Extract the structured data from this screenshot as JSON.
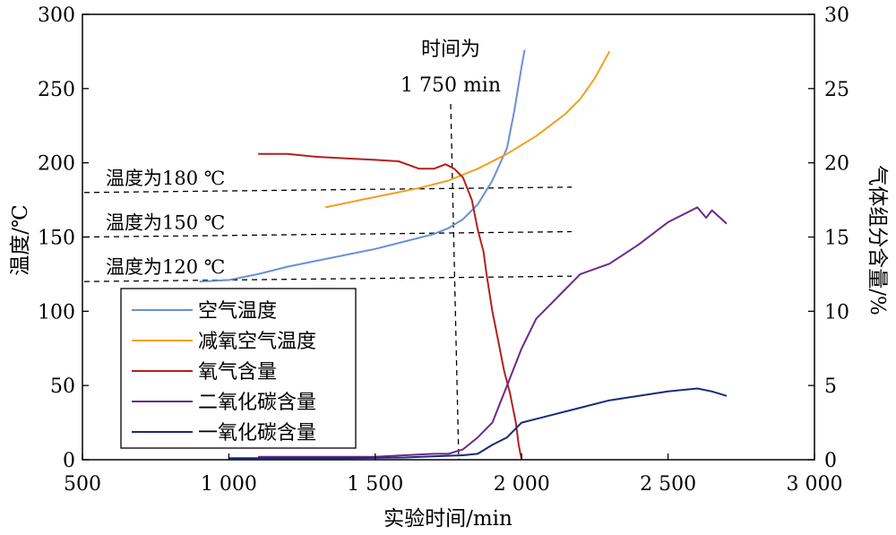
{
  "chart_data": {
    "type": "line",
    "xlabel": "实验时间/min",
    "ylabel_left": "温度/℃",
    "ylabel_right": "气体组分含量/%",
    "xlim": [
      500,
      3000
    ],
    "ylim_left": [
      0,
      300
    ],
    "ylim_right": [
      0,
      30
    ],
    "x_ticks": [
      500,
      1000,
      1500,
      2000,
      2500,
      3000
    ],
    "x_tick_labels": [
      "500",
      "1 000",
      "1 500",
      "2 000",
      "2 500",
      "3 000"
    ],
    "y_left_ticks": [
      0,
      50,
      100,
      150,
      200,
      250,
      300
    ],
    "y_left_tick_labels": [
      "0",
      "50",
      "100",
      "150",
      "200",
      "250",
      "300"
    ],
    "y_right_ticks": [
      0,
      5,
      10,
      15,
      20,
      25,
      30
    ],
    "y_right_tick_labels": [
      "0",
      "5",
      "10",
      "15",
      "20",
      "25",
      "30"
    ],
    "legend_position": "lower-left",
    "series": [
      {
        "name": "空气温度",
        "axis": "left",
        "color": "#6b8fd6",
        "points": [
          [
            900,
            120
          ],
          [
            1000,
            121
          ],
          [
            1100,
            125
          ],
          [
            1200,
            130
          ],
          [
            1300,
            134
          ],
          [
            1400,
            138
          ],
          [
            1500,
            142
          ],
          [
            1600,
            147
          ],
          [
            1700,
            152
          ],
          [
            1750,
            156
          ],
          [
            1800,
            162
          ],
          [
            1850,
            172
          ],
          [
            1900,
            188
          ],
          [
            1950,
            210
          ],
          [
            1975,
            235
          ],
          [
            2000,
            265
          ],
          [
            2010,
            276
          ]
        ]
      },
      {
        "name": "减氧空气温度",
        "axis": "left",
        "color": "#f0a020",
        "points": [
          [
            1330,
            170
          ],
          [
            1450,
            175
          ],
          [
            1550,
            179
          ],
          [
            1650,
            183
          ],
          [
            1750,
            188
          ],
          [
            1850,
            196
          ],
          [
            1950,
            206
          ],
          [
            2050,
            218
          ],
          [
            2150,
            233
          ],
          [
            2200,
            243
          ],
          [
            2250,
            257
          ],
          [
            2300,
            275
          ]
        ]
      },
      {
        "name": "氧气含量",
        "axis": "right",
        "color": "#b22020",
        "points": [
          [
            1100,
            20.6
          ],
          [
            1200,
            20.6
          ],
          [
            1300,
            20.4
          ],
          [
            1400,
            20.3
          ],
          [
            1500,
            20.2
          ],
          [
            1580,
            20.1
          ],
          [
            1650,
            19.6
          ],
          [
            1700,
            19.6
          ],
          [
            1740,
            19.9
          ],
          [
            1770,
            19.6
          ],
          [
            1800,
            19.0
          ],
          [
            1830,
            17.5
          ],
          [
            1850,
            15.5
          ],
          [
            1870,
            14.0
          ],
          [
            1880,
            12.5
          ],
          [
            1900,
            10.0
          ],
          [
            1920,
            8.0
          ],
          [
            1940,
            6.0
          ],
          [
            1960,
            4.5
          ],
          [
            1980,
            2.5
          ],
          [
            1990,
            1.0
          ],
          [
            2000,
            0.0
          ]
        ]
      },
      {
        "name": "二氧化碳含量",
        "axis": "right",
        "color": "#6a2a8a",
        "points": [
          [
            1100,
            0.2
          ],
          [
            1300,
            0.2
          ],
          [
            1500,
            0.2
          ],
          [
            1600,
            0.3
          ],
          [
            1700,
            0.4
          ],
          [
            1750,
            0.4
          ],
          [
            1800,
            0.7
          ],
          [
            1850,
            1.5
          ],
          [
            1900,
            2.5
          ],
          [
            1950,
            5.0
          ],
          [
            2000,
            7.5
          ],
          [
            2050,
            9.5
          ],
          [
            2100,
            10.5
          ],
          [
            2150,
            11.5
          ],
          [
            2200,
            12.5
          ],
          [
            2300,
            13.2
          ],
          [
            2400,
            14.5
          ],
          [
            2500,
            16.0
          ],
          [
            2600,
            17.0
          ],
          [
            2630,
            16.3
          ],
          [
            2650,
            16.8
          ],
          [
            2700,
            15.9
          ]
        ]
      },
      {
        "name": "一氧化碳含量",
        "axis": "right",
        "color": "#1a2a7a",
        "points": [
          [
            1000,
            0.1
          ],
          [
            1200,
            0.1
          ],
          [
            1400,
            0.1
          ],
          [
            1600,
            0.15
          ],
          [
            1800,
            0.3
          ],
          [
            1850,
            0.4
          ],
          [
            1900,
            1.0
          ],
          [
            1950,
            1.5
          ],
          [
            2000,
            2.5
          ],
          [
            2100,
            3.0
          ],
          [
            2200,
            3.5
          ],
          [
            2300,
            4.0
          ],
          [
            2400,
            4.3
          ],
          [
            2500,
            4.6
          ],
          [
            2600,
            4.8
          ],
          [
            2650,
            4.6
          ],
          [
            2700,
            4.3
          ]
        ]
      }
    ],
    "reference_lines": [
      {
        "label": "温度为180 ℃",
        "axis": "left",
        "value": 180
      },
      {
        "label": "温度为150 ℃",
        "axis": "left",
        "value": 150
      },
      {
        "label": "温度为120 ℃",
        "axis": "left",
        "value": 120
      }
    ],
    "time_marker": {
      "x": 1750,
      "label_line1": "时间为",
      "label_line2": "1 750 min"
    }
  }
}
